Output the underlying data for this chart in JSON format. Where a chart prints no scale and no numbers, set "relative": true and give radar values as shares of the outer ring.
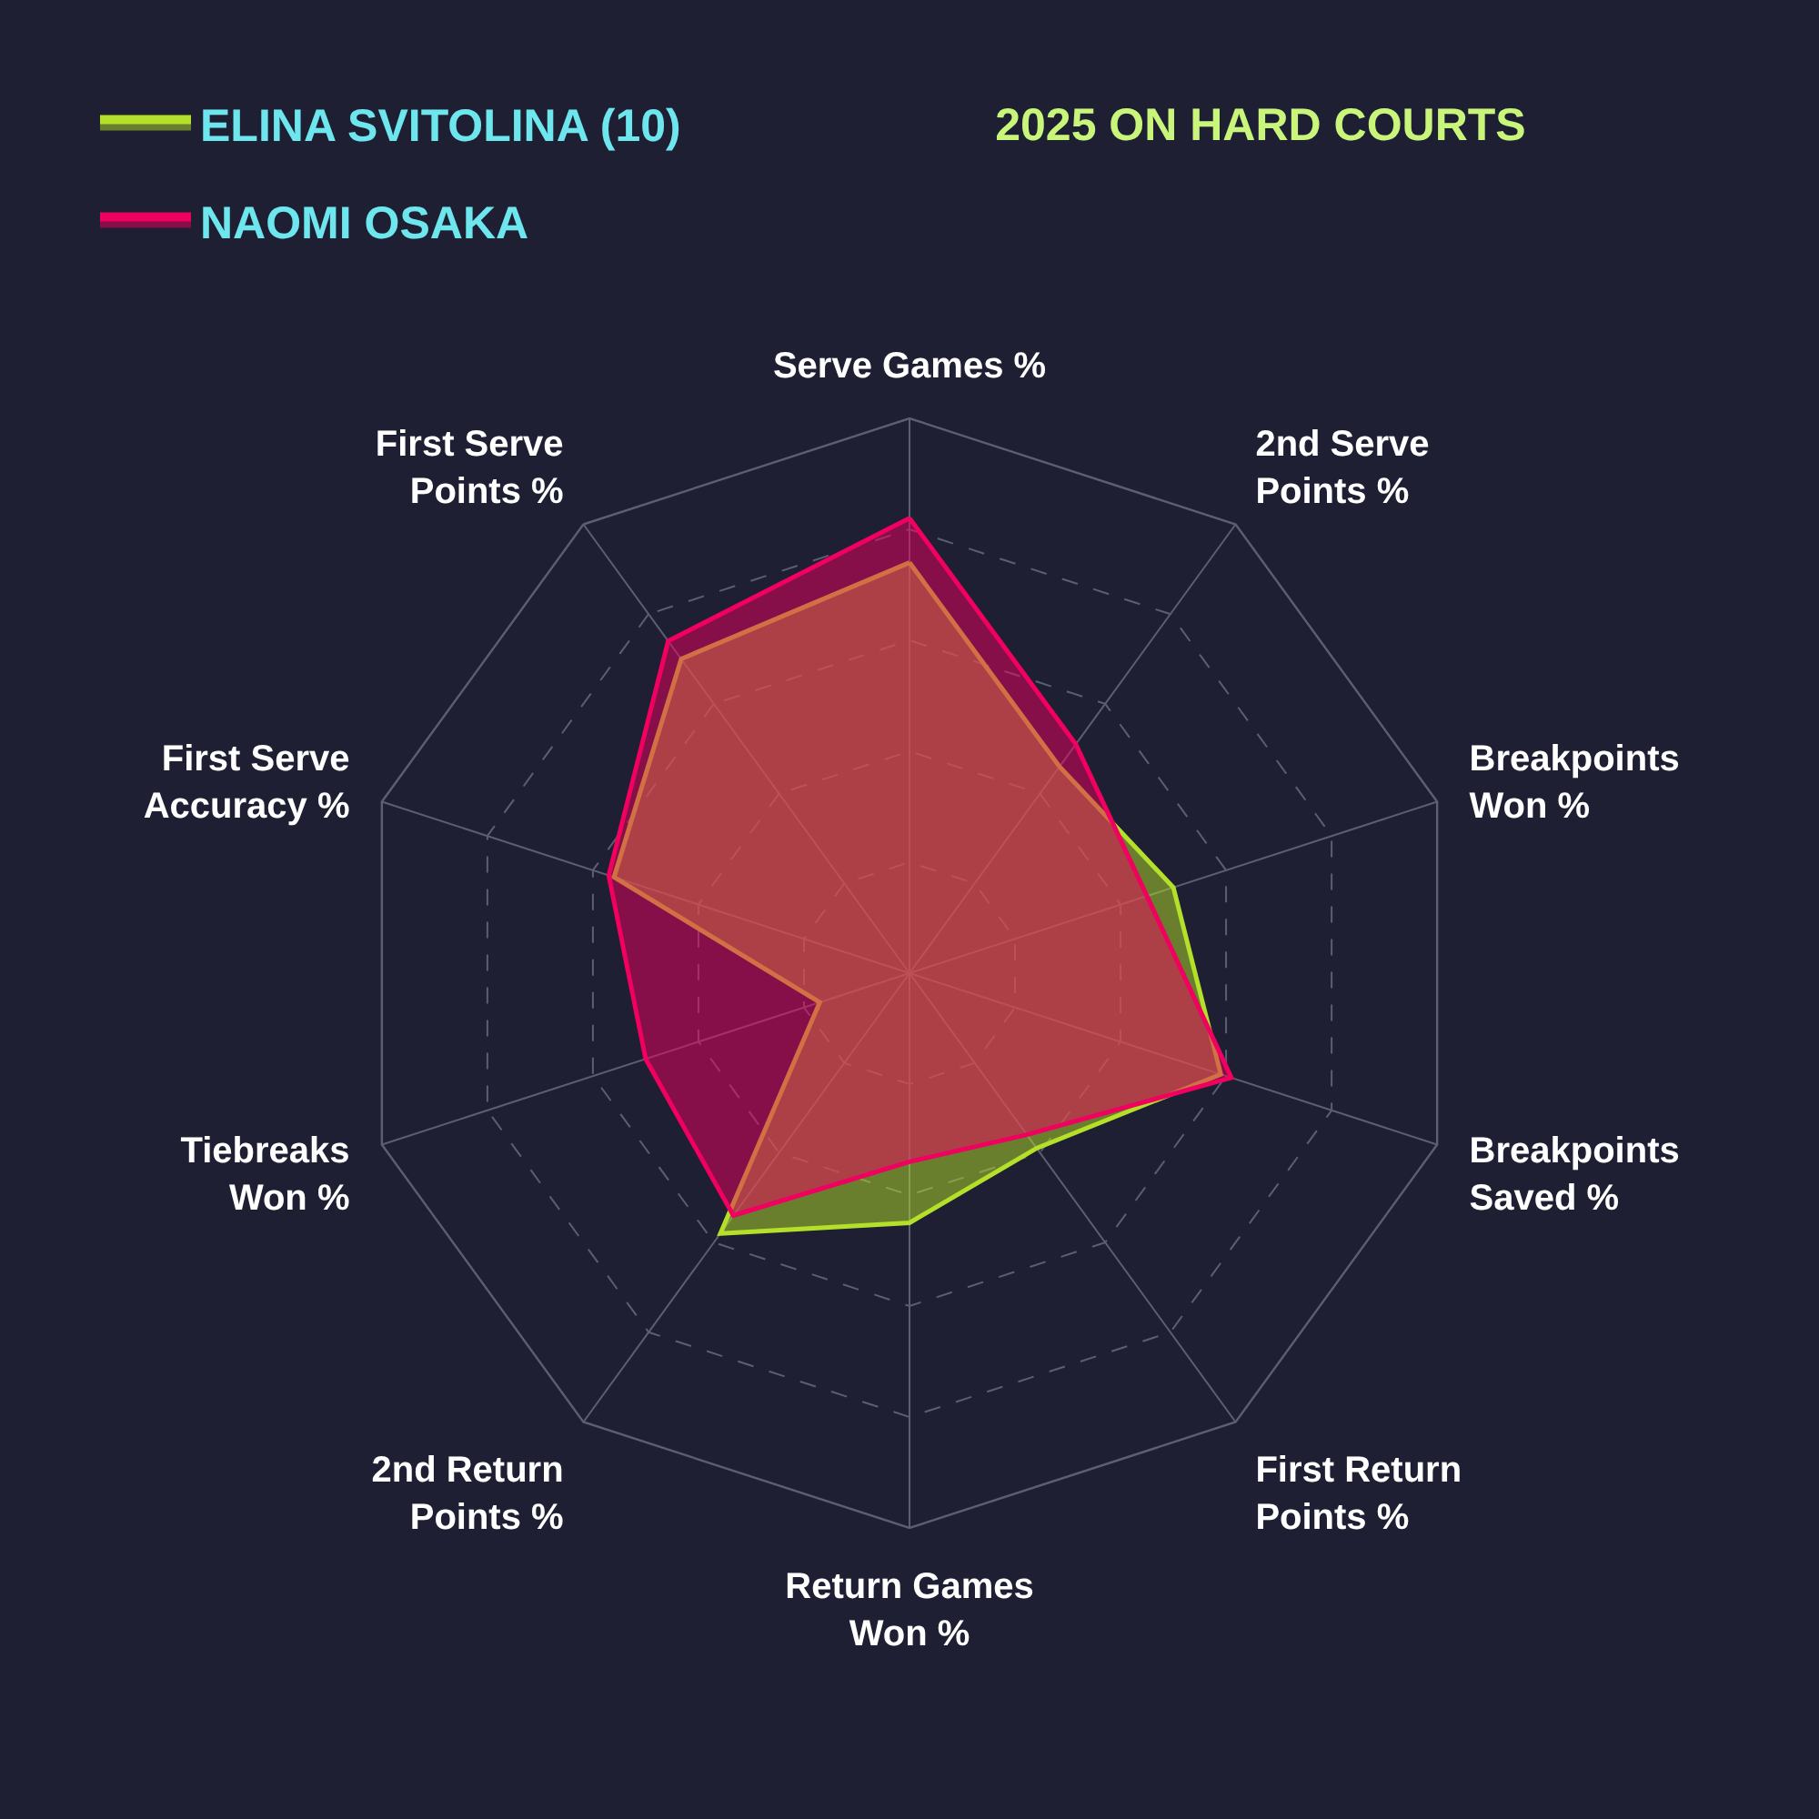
{
  "chart_data": {
    "type": "radar",
    "title": "2025 ON HARD COURTS",
    "categories": [
      "Serve Games %",
      "2nd Serve\nPoints %",
      "Breakpoints\nWon %",
      "Breakpoints\nSaved %",
      "First Return\nPoints %",
      "Return Games\nWon %",
      "2nd Return\nPoints %",
      "Tiebreaks\nWon %",
      "First Serve\nAccuracy %",
      "First Serve\nPoints %"
    ],
    "relative": true,
    "grid": true,
    "legend": "top left",
    "line_style": "solid",
    "series": [
      {
        "name": "ELINA SVITOLINA (10)",
        "color": "#b5e02a",
        "values": [
          0.74,
          0.46,
          0.5,
          0.59,
          0.39,
          0.45,
          0.58,
          0.17,
          0.56,
          0.7
        ]
      },
      {
        "name": "NAOMI OSAKA",
        "color": "#f0005f",
        "values": [
          0.82,
          0.51,
          0.45,
          0.61,
          0.36,
          0.34,
          0.54,
          0.5,
          0.57,
          0.74
        ]
      }
    ]
  }
}
